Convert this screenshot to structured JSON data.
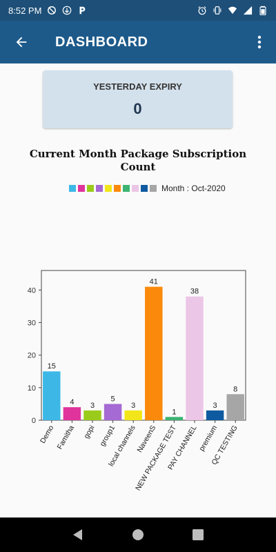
{
  "status_bar": {
    "time": "8:52 PM",
    "left_icons": [
      "sync-off-icon",
      "download-icon",
      "parking-app-icon"
    ],
    "right_icons": [
      "alarm-icon",
      "vibrate-icon",
      "wifi-icon",
      "signal-icon",
      "battery-icon"
    ]
  },
  "app_bar": {
    "title": "DASHBOARD",
    "back_icon": "arrow-back-icon",
    "menu_icon": "more-vert-icon",
    "color": "#1d5a8a"
  },
  "card": {
    "label": "YESTERDAY EXPIRY",
    "value": "0"
  },
  "chart_data": {
    "type": "bar",
    "title": "Current Month Package Subscription Count",
    "legend_label": "Month : Oct-2020",
    "legend_position": "top",
    "categories": [
      "Demo",
      "Famitha",
      "gopi",
      "group1",
      "local channels",
      "NaveenS",
      "NEW PACKAGE TEST",
      "PAY CHANNEL",
      "premium",
      "QC TESTING"
    ],
    "values": [
      15,
      4,
      3,
      5,
      3,
      41,
      1,
      38,
      3,
      8
    ],
    "colors": [
      "#3db8e6",
      "#e0349c",
      "#9acb1a",
      "#a56ad3",
      "#f2e61a",
      "#fb8a0c",
      "#3cb371",
      "#ecc6e6",
      "#0e5aa0",
      "#a6a6a6"
    ],
    "ylim": [
      0,
      46
    ],
    "yticks": [
      0,
      10,
      20,
      30,
      40
    ],
    "xlabel": "",
    "ylabel": "",
    "grid": false
  },
  "nav_bar": {
    "icons": [
      "back-triangle-icon",
      "home-circle-icon",
      "recents-square-icon"
    ]
  }
}
